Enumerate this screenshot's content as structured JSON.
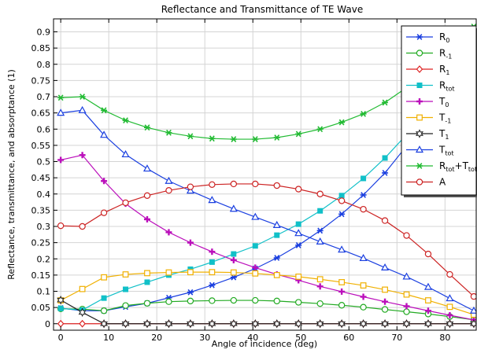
{
  "chart_data": {
    "type": "line",
    "title": "Reflectance and Transmittance of TE Wave",
    "xlabel": "Angle of incidence (deg)",
    "ylabel": "Reflectance, transmittance, and absorptance (1)",
    "xlim": [
      -1.5,
      86.5
    ],
    "ylim": [
      -0.02,
      0.94
    ],
    "xticks": [
      0,
      10,
      20,
      30,
      40,
      50,
      60,
      70,
      80
    ],
    "yticks": [
      0,
      0.05,
      0.1,
      0.15,
      0.2,
      0.25,
      0.3,
      0.35,
      0.4,
      0.45,
      0.5,
      0.55,
      0.6,
      0.65,
      0.7,
      0.75,
      0.8,
      0.85,
      0.9
    ],
    "ytick_labels": [
      "0",
      "0.05",
      "0.1",
      "0.15",
      "0.2",
      "0.25",
      "0.3",
      "0.35",
      "0.4",
      "0.45",
      "0.5",
      "0.55",
      "0.6",
      "0.65",
      "0.7",
      "0.75",
      "0.8",
      "0.85",
      "0.9"
    ],
    "grid": true,
    "legend_position": "top-right",
    "x": [
      0,
      4.5,
      9,
      13.5,
      18,
      22.5,
      27,
      31.5,
      36,
      40.5,
      45,
      49.5,
      54,
      58.5,
      63,
      67.5,
      72,
      76.5,
      81,
      86
    ],
    "series": [
      {
        "name": "R",
        "sub": "0",
        "color": "#1a3fe0",
        "marker": "asterisk",
        "values": [
          0.048,
          0.04,
          0.04,
          0.052,
          0.063,
          0.08,
          0.097,
          0.119,
          0.143,
          0.17,
          0.203,
          0.242,
          0.287,
          0.338,
          0.397,
          0.465,
          0.548,
          0.645,
          0.75,
          0.865
        ]
      },
      {
        "name": "R",
        "sub": "-1",
        "color": "#22aa22",
        "marker": "circle",
        "values": [
          0.046,
          0.045,
          0.04,
          0.056,
          0.063,
          0.068,
          0.07,
          0.071,
          0.072,
          0.072,
          0.07,
          0.066,
          0.062,
          0.057,
          0.051,
          0.044,
          0.037,
          0.03,
          0.022,
          0.012
        ]
      },
      {
        "name": "R",
        "sub": "1",
        "color": "#dd2222",
        "marker": "diamond",
        "values": [
          0,
          0,
          0,
          0,
          0,
          0,
          0,
          0,
          0,
          0,
          0,
          0,
          0,
          0,
          0,
          0,
          0,
          0,
          0,
          0
        ]
      },
      {
        "name": "R",
        "sub": "tot",
        "color": "#11c0c8",
        "marker": "square",
        "values": [
          0.047,
          0.042,
          0.079,
          0.106,
          0.128,
          0.15,
          0.168,
          0.19,
          0.215,
          0.24,
          0.273,
          0.307,
          0.348,
          0.395,
          0.448,
          0.511,
          0.583,
          0.672,
          0.77,
          0.877
        ]
      },
      {
        "name": "T",
        "sub": "0",
        "color": "#bb0fbb",
        "marker": "plus",
        "values": [
          0.505,
          0.52,
          0.44,
          0.37,
          0.322,
          0.282,
          0.25,
          0.222,
          0.196,
          0.173,
          0.152,
          0.134,
          0.115,
          0.099,
          0.083,
          0.068,
          0.054,
          0.04,
          0.026,
          0.012
        ]
      },
      {
        "name": "T",
        "sub": "-1",
        "color": "#f0b000",
        "marker": "square-open",
        "values": [
          0.072,
          0.107,
          0.143,
          0.152,
          0.156,
          0.158,
          0.159,
          0.159,
          0.158,
          0.155,
          0.15,
          0.145,
          0.137,
          0.128,
          0.118,
          0.105,
          0.09,
          0.072,
          0.052,
          0.028
        ]
      },
      {
        "name": "T",
        "sub": "1",
        "color": "#222222",
        "marker": "hexstar",
        "values": [
          0.073,
          0.035,
          0,
          0,
          0,
          0,
          0,
          0,
          0,
          0,
          0,
          0,
          0,
          0,
          0,
          0,
          0,
          0,
          0,
          0
        ]
      },
      {
        "name": "T",
        "sub": "tot",
        "color": "#1a3fe0",
        "marker": "triangle",
        "values": [
          0.65,
          0.658,
          0.582,
          0.522,
          0.478,
          0.44,
          0.41,
          0.381,
          0.354,
          0.329,
          0.304,
          0.279,
          0.253,
          0.228,
          0.202,
          0.173,
          0.145,
          0.113,
          0.078,
          0.04
        ]
      },
      {
        "name": "R_tot+T_tot",
        "sub": "",
        "color": "#22bb33",
        "marker": "asterisk",
        "values": [
          0.697,
          0.7,
          0.658,
          0.627,
          0.605,
          0.589,
          0.578,
          0.571,
          0.569,
          0.569,
          0.574,
          0.585,
          0.6,
          0.621,
          0.647,
          0.682,
          0.728,
          0.785,
          0.848,
          0.916
        ]
      },
      {
        "name": "A",
        "sub": "",
        "color": "#cc2222",
        "marker": "circle",
        "values": [
          0.302,
          0.3,
          0.342,
          0.373,
          0.395,
          0.411,
          0.422,
          0.429,
          0.431,
          0.431,
          0.426,
          0.415,
          0.4,
          0.379,
          0.353,
          0.318,
          0.272,
          0.215,
          0.152,
          0.084
        ]
      }
    ],
    "legend": [
      {
        "main": "R",
        "sub": "0"
      },
      {
        "main": "R",
        "sub": "-1"
      },
      {
        "main": "R",
        "sub": "1"
      },
      {
        "main": "R",
        "sub": "tot"
      },
      {
        "main": "T",
        "sub": "0"
      },
      {
        "main": "T",
        "sub": "-1"
      },
      {
        "main": "T",
        "sub": "1"
      },
      {
        "main": "T",
        "sub": "tot"
      },
      {
        "main": "R",
        "sub": "tot",
        "main2": "+T",
        "sub2": "tot"
      },
      {
        "main": "A",
        "sub": ""
      }
    ]
  }
}
